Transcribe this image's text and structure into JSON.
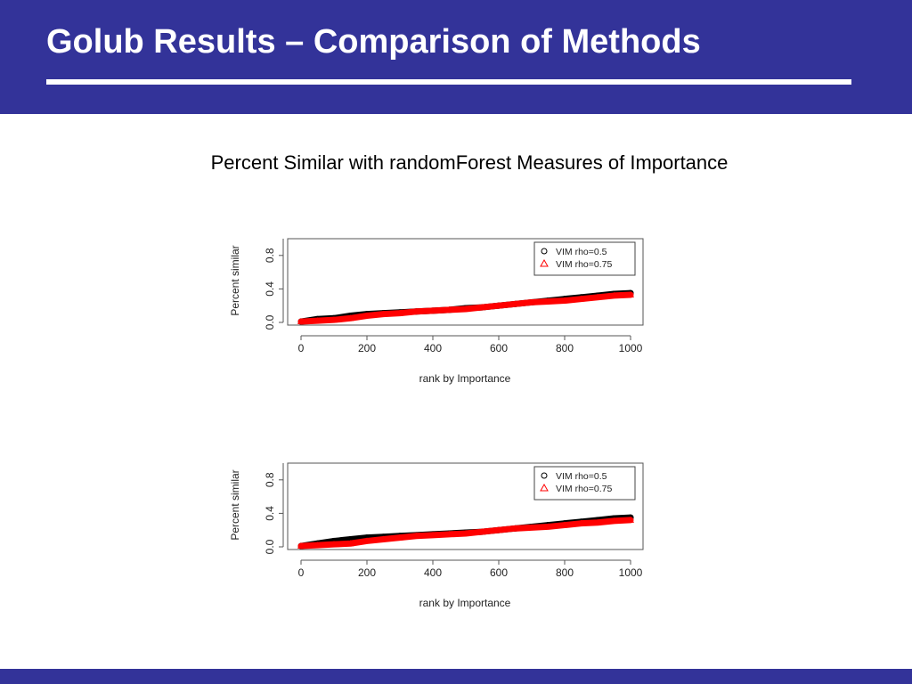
{
  "slide": {
    "title": "Golub Results – Comparison of Methods",
    "subtitle": "Percent Similar with randomForest Measures of Importance",
    "colors": {
      "header": "#333399",
      "series_a": "#000000",
      "series_b": "#ff0000"
    }
  },
  "chart_data": [
    {
      "type": "scatter",
      "title": "",
      "xlabel": "rank by Importance",
      "ylabel": "Percent similar",
      "xlim": [
        0,
        1000
      ],
      "ylim": [
        0.0,
        1.0
      ],
      "xticks": [
        "0",
        "200",
        "400",
        "600",
        "800",
        "1000"
      ],
      "yticks": [
        "0.0",
        "0.4",
        "0.8"
      ],
      "legend_position": "top-right",
      "series": [
        {
          "name": "VIM rho=0.5",
          "marker": "circle",
          "color": "#000000",
          "x": [
            0,
            50,
            100,
            150,
            200,
            250,
            300,
            350,
            400,
            450,
            500,
            550,
            600,
            650,
            700,
            750,
            800,
            850,
            900,
            950,
            1000
          ],
          "y": [
            0.01,
            0.04,
            0.05,
            0.08,
            0.1,
            0.11,
            0.12,
            0.13,
            0.14,
            0.15,
            0.17,
            0.18,
            0.2,
            0.22,
            0.24,
            0.26,
            0.28,
            0.3,
            0.32,
            0.34,
            0.35
          ]
        },
        {
          "name": "VIM rho=0.75",
          "marker": "triangle",
          "color": "#ff0000",
          "x": [
            0,
            50,
            100,
            150,
            200,
            250,
            300,
            350,
            400,
            450,
            500,
            550,
            600,
            650,
            700,
            750,
            800,
            850,
            900,
            950,
            1000
          ],
          "y": [
            0.01,
            0.02,
            0.03,
            0.05,
            0.08,
            0.1,
            0.11,
            0.13,
            0.14,
            0.15,
            0.16,
            0.18,
            0.2,
            0.22,
            0.24,
            0.25,
            0.26,
            0.28,
            0.3,
            0.32,
            0.33
          ]
        }
      ]
    },
    {
      "type": "scatter",
      "title": "",
      "xlabel": "rank by Importance",
      "ylabel": "Percent similar",
      "xlim": [
        0,
        1000
      ],
      "ylim": [
        0.0,
        1.0
      ],
      "xticks": [
        "0",
        "200",
        "400",
        "600",
        "800",
        "1000"
      ],
      "yticks": [
        "0.0",
        "0.4",
        "0.8"
      ],
      "legend_position": "top-right",
      "series": [
        {
          "name": "VIM rho=0.5",
          "marker": "circle",
          "color": "#000000",
          "x": [
            0,
            50,
            100,
            150,
            200,
            250,
            300,
            350,
            400,
            450,
            500,
            550,
            600,
            650,
            700,
            750,
            800,
            850,
            900,
            950,
            1000
          ],
          "y": [
            0.01,
            0.04,
            0.07,
            0.09,
            0.11,
            0.12,
            0.13,
            0.14,
            0.15,
            0.16,
            0.17,
            0.18,
            0.2,
            0.22,
            0.24,
            0.26,
            0.28,
            0.3,
            0.32,
            0.34,
            0.35
          ]
        },
        {
          "name": "VIM rho=0.75",
          "marker": "triangle",
          "color": "#ff0000",
          "x": [
            0,
            50,
            100,
            150,
            200,
            250,
            300,
            350,
            400,
            450,
            500,
            550,
            600,
            650,
            700,
            750,
            800,
            850,
            900,
            950,
            1000
          ],
          "y": [
            0.01,
            0.02,
            0.03,
            0.04,
            0.07,
            0.09,
            0.11,
            0.13,
            0.14,
            0.15,
            0.16,
            0.18,
            0.2,
            0.22,
            0.23,
            0.24,
            0.26,
            0.28,
            0.29,
            0.31,
            0.32
          ]
        }
      ]
    }
  ]
}
